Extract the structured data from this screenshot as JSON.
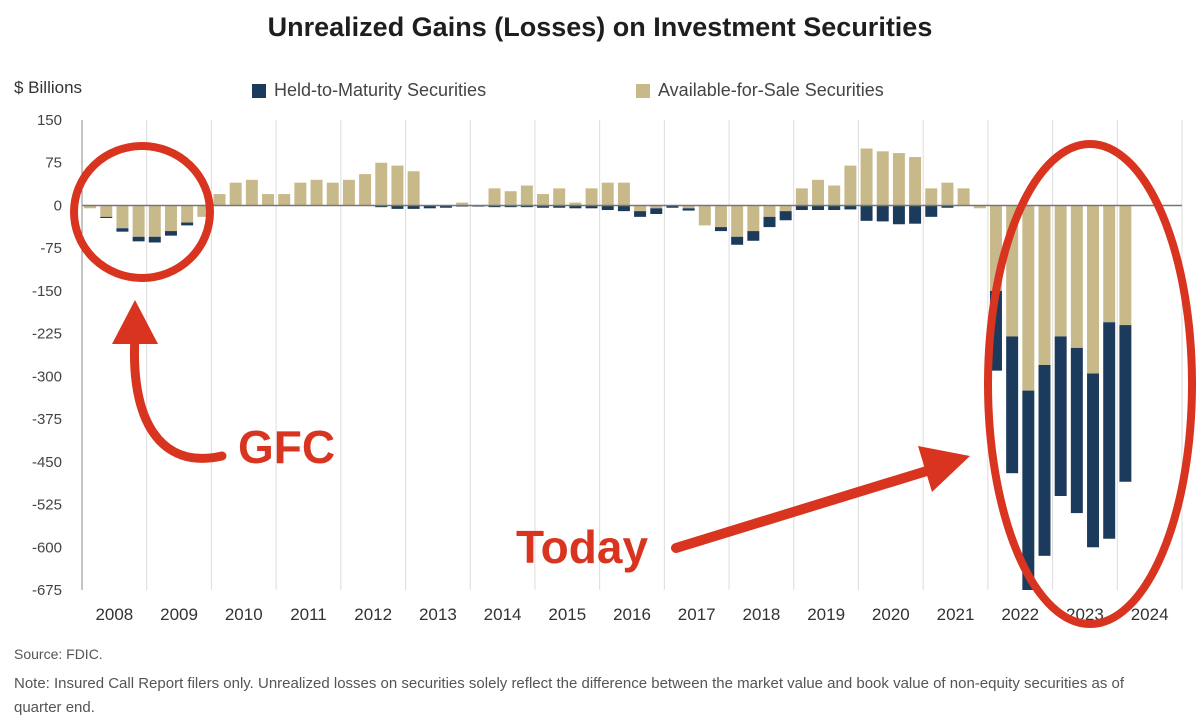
{
  "title": "Unrealized Gains (Losses) on Investment Securities",
  "chart_data": {
    "type": "bar",
    "stacked": true,
    "title": "Unrealized Gains (Losses) on Investment Securities",
    "ylabel": "$ Billions",
    "ylim": [
      -675,
      150
    ],
    "yticks": [
      150,
      75,
      0,
      -75,
      -150,
      -225,
      -300,
      -375,
      -450,
      -525,
      -600,
      -675
    ],
    "xticks": [
      "2008",
      "2009",
      "2010",
      "2011",
      "2012",
      "2013",
      "2014",
      "2015",
      "2016",
      "2017",
      "2018",
      "2019",
      "2020",
      "2021",
      "2022",
      "2023",
      "2024"
    ],
    "grid": "vertical",
    "legend": "top",
    "x_note": "quarterly, Q1 2008 - Q1 2024",
    "series": [
      {
        "name": "Held-to-Maturity Securities",
        "color": "#1b3a5c",
        "values": [
          0,
          -2,
          -6,
          -8,
          -10,
          -8,
          -5,
          0,
          0,
          0,
          0,
          0,
          0,
          0,
          0,
          0,
          0,
          0,
          -3,
          -6,
          -6,
          -5,
          -4,
          -2,
          -2,
          -3,
          -3,
          -3,
          -4,
          -4,
          -5,
          -5,
          -8,
          -10,
          -10,
          -10,
          -4,
          -4,
          0,
          -7,
          -14,
          -17,
          -18,
          -16,
          -8,
          -8,
          -8,
          -7,
          -27,
          -28,
          -33,
          -32,
          -20,
          -4,
          0,
          0,
          -140,
          -240,
          -350,
          -335,
          -280,
          -290,
          -305,
          -380,
          -275
        ]
      },
      {
        "name": "Available-for-Sale Securities",
        "color": "#c8b98a",
        "values": [
          -5,
          -20,
          -40,
          -55,
          -55,
          -45,
          -30,
          -20,
          20,
          40,
          45,
          20,
          20,
          40,
          45,
          40,
          45,
          55,
          75,
          70,
          60,
          0,
          0,
          5,
          0,
          30,
          25,
          35,
          20,
          30,
          5,
          30,
          40,
          40,
          -10,
          -5,
          0,
          -5,
          -35,
          -38,
          -55,
          -45,
          -20,
          -10,
          30,
          45,
          35,
          70,
          100,
          95,
          92,
          85,
          30,
          40,
          30,
          -5,
          -150,
          -230,
          -325,
          -280,
          -230,
          -250,
          -295,
          -205,
          -210
        ]
      }
    ]
  },
  "annotations": {
    "gfc": "GFC",
    "today": "Today"
  },
  "source": "Source: FDIC.",
  "note": "Note: Insured Call Report filers only. Unrealized losses on securities solely reflect the difference between the market value and book value of non-equity securities as of quarter end."
}
